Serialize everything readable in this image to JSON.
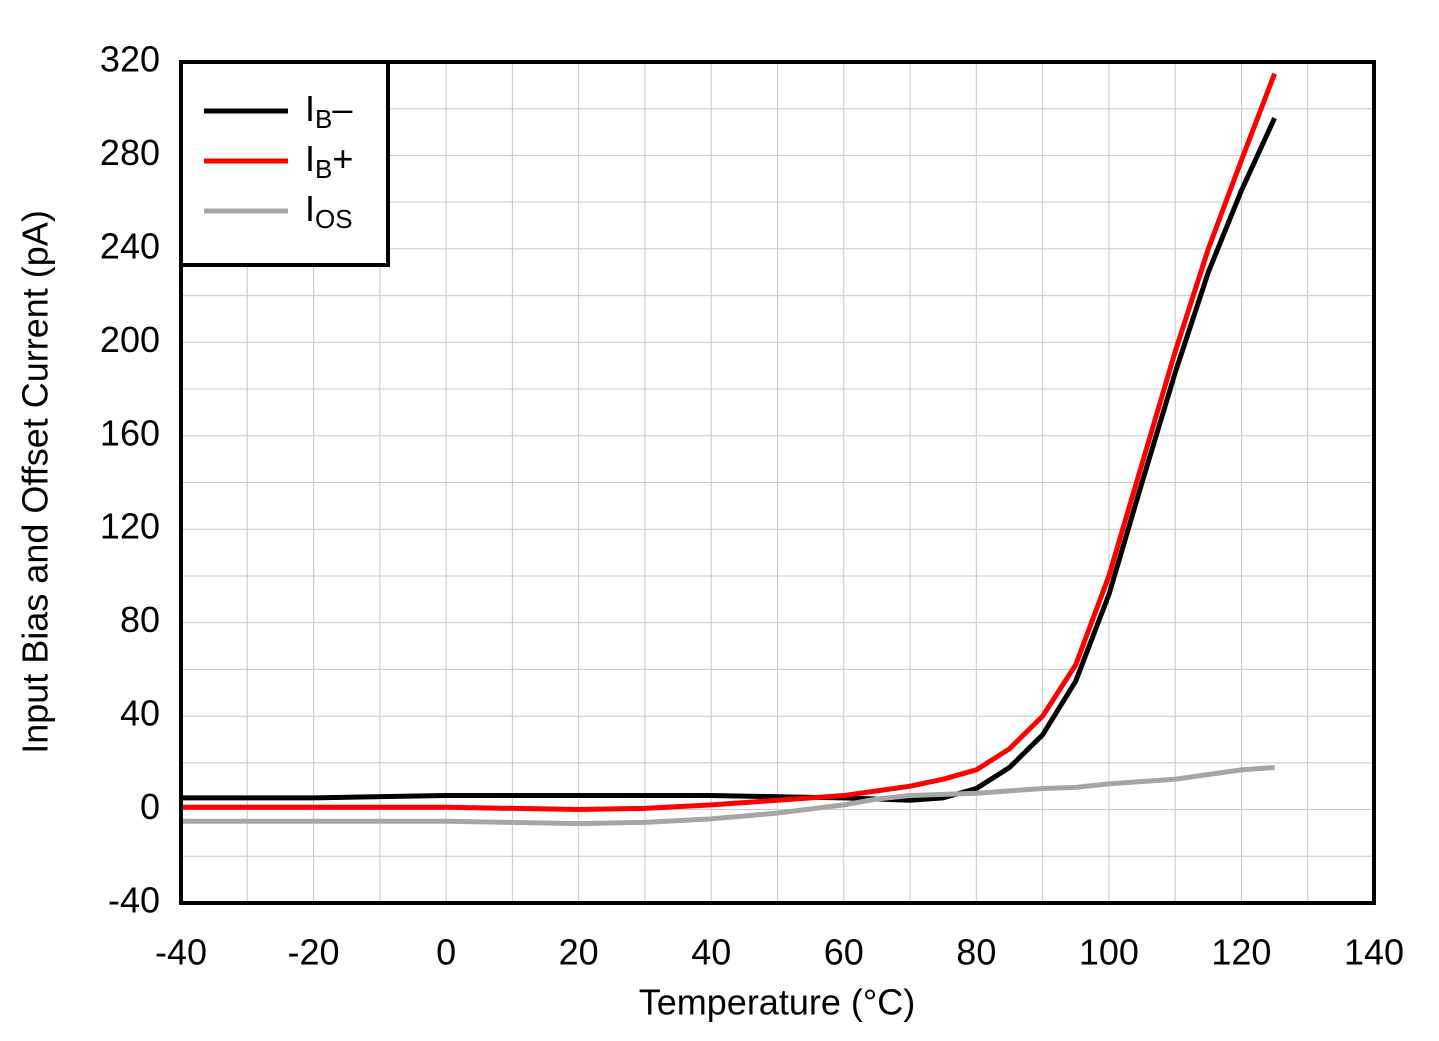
{
  "chart_data": {
    "type": "line",
    "xlabel": "Temperature (°C)",
    "ylabel": "Input Bias and Offset Current (pA)",
    "x": [
      -40,
      -20,
      0,
      20,
      30,
      40,
      50,
      60,
      65,
      70,
      75,
      80,
      85,
      90,
      95,
      100,
      105,
      110,
      115,
      120,
      125
    ],
    "series": [
      {
        "name": "IB–",
        "color": "#000000",
        "values": [
          5,
          5,
          6,
          6,
          6,
          6,
          5.5,
          5,
          4.5,
          4,
          5,
          9,
          18,
          32,
          55,
          92,
          140,
          187,
          230,
          265,
          296
        ]
      },
      {
        "name": "IB+",
        "color": "#ff0000",
        "values": [
          1,
          1,
          1,
          0,
          0.5,
          2,
          4,
          6,
          8,
          10,
          13,
          17,
          26,
          40,
          62,
          100,
          148,
          196,
          240,
          278,
          315
        ]
      },
      {
        "name": "IOS",
        "color": "#a6a6a6",
        "values": [
          -5,
          -5,
          -5,
          -6,
          -5.5,
          -4,
          -1.5,
          2,
          4.5,
          6,
          6.5,
          7,
          8,
          9,
          9.5,
          11,
          12,
          13,
          15,
          17,
          18
        ]
      }
    ],
    "xlim": [
      -40,
      140
    ],
    "xticks": [
      -40,
      -20,
      0,
      20,
      40,
      60,
      80,
      100,
      120,
      140
    ],
    "ylim": [
      -40,
      320
    ],
    "yticks": [
      -40,
      0,
      40,
      80,
      120,
      160,
      200,
      240,
      280,
      320
    ],
    "grid": true,
    "legend": "upper left"
  }
}
